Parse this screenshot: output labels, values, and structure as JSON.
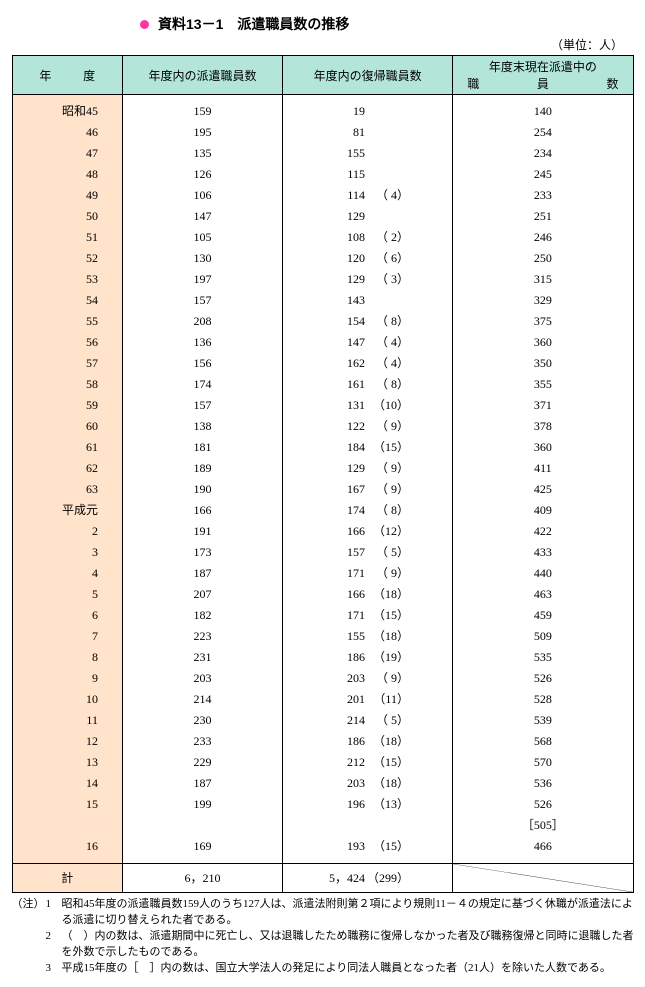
{
  "title": "資料13－1　派遣職員数の推移",
  "unit": "（単位：人）",
  "headers": {
    "year_left": "年",
    "year_right": "度",
    "col2": "年度内の派遣職員数",
    "col3": "年度内の復帰職員数",
    "col4_line1": "年度末現在派遣中の",
    "col4_sp1": "職",
    "col4_sp2": "員",
    "col4_sp3": "数"
  },
  "rows": [
    {
      "y": "昭和45",
      "a": "159",
      "b": "19",
      "p": "",
      "c": "140"
    },
    {
      "y": "46",
      "a": "195",
      "b": "81",
      "p": "",
      "c": "254"
    },
    {
      "y": "47",
      "a": "135",
      "b": "155",
      "p": "",
      "c": "234"
    },
    {
      "y": "48",
      "a": "126",
      "b": "115",
      "p": "",
      "c": "245"
    },
    {
      "y": "49",
      "a": "106",
      "b": "114",
      "p": "（ 4）",
      "c": "233"
    },
    {
      "y": "50",
      "a": "147",
      "b": "129",
      "p": "",
      "c": "251"
    },
    {
      "y": "51",
      "a": "105",
      "b": "108",
      "p": "（ 2）",
      "c": "246"
    },
    {
      "y": "52",
      "a": "130",
      "b": "120",
      "p": "（ 6）",
      "c": "250"
    },
    {
      "y": "53",
      "a": "197",
      "b": "129",
      "p": "（ 3）",
      "c": "315"
    },
    {
      "y": "54",
      "a": "157",
      "b": "143",
      "p": "",
      "c": "329"
    },
    {
      "y": "55",
      "a": "208",
      "b": "154",
      "p": "（ 8）",
      "c": "375"
    },
    {
      "y": "56",
      "a": "136",
      "b": "147",
      "p": "（ 4）",
      "c": "360"
    },
    {
      "y": "57",
      "a": "156",
      "b": "162",
      "p": "（ 4）",
      "c": "350"
    },
    {
      "y": "58",
      "a": "174",
      "b": "161",
      "p": "（ 8）",
      "c": "355"
    },
    {
      "y": "59",
      "a": "157",
      "b": "131",
      "p": "（10）",
      "c": "371"
    },
    {
      "y": "60",
      "a": "138",
      "b": "122",
      "p": "（ 9）",
      "c": "378"
    },
    {
      "y": "61",
      "a": "181",
      "b": "184",
      "p": "（15）",
      "c": "360"
    },
    {
      "y": "62",
      "a": "189",
      "b": "129",
      "p": "（ 9）",
      "c": "411"
    },
    {
      "y": "63",
      "a": "190",
      "b": "167",
      "p": "（ 9）",
      "c": "425"
    },
    {
      "y": "平成元",
      "a": "166",
      "b": "174",
      "p": "（ 8）",
      "c": "409"
    },
    {
      "y": "2",
      "a": "191",
      "b": "166",
      "p": "（12）",
      "c": "422"
    },
    {
      "y": "3",
      "a": "173",
      "b": "157",
      "p": "（ 5）",
      "c": "433"
    },
    {
      "y": "4",
      "a": "187",
      "b": "171",
      "p": "（ 9）",
      "c": "440"
    },
    {
      "y": "5",
      "a": "207",
      "b": "166",
      "p": "（18）",
      "c": "463"
    },
    {
      "y": "6",
      "a": "182",
      "b": "171",
      "p": "（15）",
      "c": "459"
    },
    {
      "y": "7",
      "a": "223",
      "b": "155",
      "p": "（18）",
      "c": "509"
    },
    {
      "y": "8",
      "a": "231",
      "b": "186",
      "p": "（19）",
      "c": "535"
    },
    {
      "y": "9",
      "a": "203",
      "b": "203",
      "p": "（ 9）",
      "c": "526"
    },
    {
      "y": "10",
      "a": "214",
      "b": "201",
      "p": "（11）",
      "c": "528"
    },
    {
      "y": "11",
      "a": "230",
      "b": "214",
      "p": "（ 5）",
      "c": "539"
    },
    {
      "y": "12",
      "a": "233",
      "b": "186",
      "p": "（18）",
      "c": "568"
    },
    {
      "y": "13",
      "a": "229",
      "b": "212",
      "p": "（15）",
      "c": "570"
    },
    {
      "y": "14",
      "a": "187",
      "b": "203",
      "p": "（18）",
      "c": "536"
    },
    {
      "y": "15",
      "a": "199",
      "b": "196",
      "p": "（13）",
      "c": "526"
    },
    {
      "y": "",
      "a": "",
      "b": "",
      "p": "",
      "c": "［505］"
    },
    {
      "y": "16",
      "a": "169",
      "b": "193",
      "p": "（15）",
      "c": "466"
    }
  ],
  "totals": {
    "label": "計",
    "a": "6，210",
    "b": "5，424",
    "p": "（299）"
  },
  "notes": {
    "lead": "（注）",
    "items": [
      {
        "n": "1",
        "t": "昭和45年度の派遣職員数159人のうち127人は、派遣法附則第２項により規則11－４の規定に基づく休職が派遣法による派遣に切り替えられた者である。"
      },
      {
        "n": "2",
        "t": "（　）内の数は、派遣期間中に死亡し、又は退職したため職務に復帰しなかった者及び職務復帰と同時に退職した者を外数で示したものである。"
      },
      {
        "n": "3",
        "t": "平成15年度の［　］内の数は、国立大学法人の発足により同法人職員となった者（21人）を除いた人数である。"
      }
    ]
  },
  "style": {
    "bullet_color": "#ff34a2",
    "header_bg": "#b3e6d9",
    "year_bg": "#ffe3ca"
  }
}
